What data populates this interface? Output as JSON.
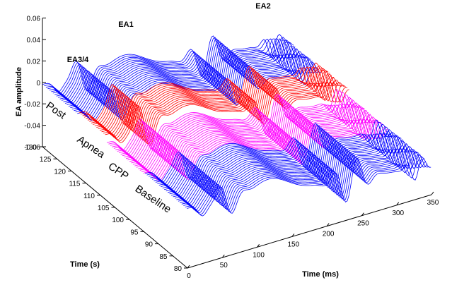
{
  "chart_data": {
    "type": "line",
    "title": "",
    "xlabel": "Time (ms)",
    "ylabel": "Time (s)",
    "zlabel": "EA amplitude",
    "xlim": [
      0,
      350
    ],
    "ylim": [
      80,
      130
    ],
    "zlim": [
      -0.06,
      0.06
    ],
    "xticks": [
      "0",
      "50",
      "100",
      "150",
      "200",
      "250",
      "300",
      "350"
    ],
    "yticks": [
      "80",
      "85",
      "90",
      "95",
      "100",
      "105",
      "110",
      "115",
      "120",
      "125",
      "130"
    ],
    "zticks": [
      "-0.06",
      "-0.04",
      "-0.02",
      "0",
      "0.02",
      "0.04",
      "0.06"
    ],
    "phases": [
      {
        "label": "Baseline",
        "color": "#0000ff",
        "t_start": 80,
        "t_end": 95
      },
      {
        "label": "CPP",
        "color": "#ff00ff",
        "t_start": 95,
        "t_end": 108
      },
      {
        "label": "Apnea",
        "color": "#ff0000",
        "t_start": 108,
        "t_end": 118
      },
      {
        "label": "Post",
        "color": "#0000ff",
        "t_start": 118,
        "t_end": 130
      }
    ],
    "annotations": [
      {
        "text": "EA1"
      },
      {
        "text": "EA2"
      },
      {
        "text": "EA3/4"
      }
    ],
    "grid": false
  }
}
